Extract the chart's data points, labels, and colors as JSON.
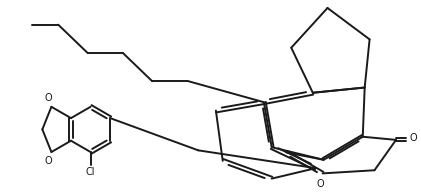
{
  "figsize": [
    4.21,
    1.96
  ],
  "dpi": 100,
  "bg": "#ffffff",
  "lc": "#1a1a1a",
  "lw": 1.4,
  "xlim": [
    0,
    10.5
  ],
  "ylim": [
    0,
    5.2
  ]
}
